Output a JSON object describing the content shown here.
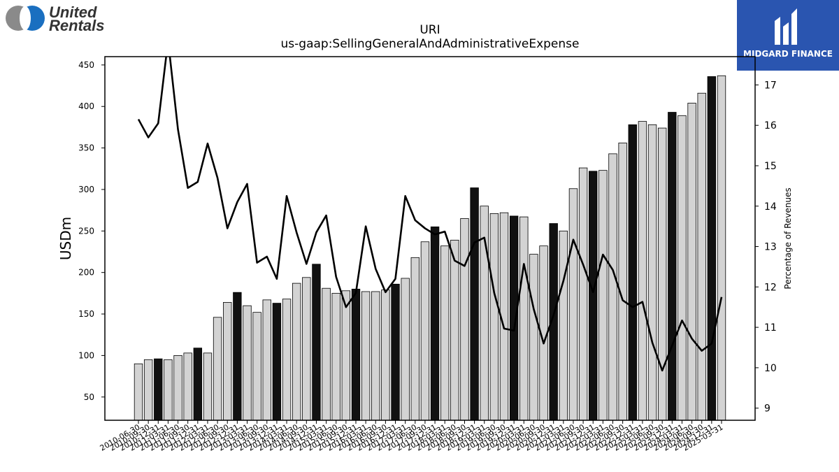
{
  "logo": {
    "line1": "United",
    "line2": "Rentals"
  },
  "badge": {
    "text": "MIDGARD FINANCE",
    "icon": "midgard-m-icon"
  },
  "colors": {
    "bar_default": "#d3d3d3",
    "bar_highlight": "#111111",
    "line": "#000000"
  },
  "chart_data": {
    "type": "bar",
    "title": "URI",
    "subtitle": "us-gaap:SellingGeneralAndAdministrativeExpense",
    "ylabel": "USDm",
    "y2label": "Percentage of Revenues",
    "ylim": [
      22,
      460
    ],
    "y2lim": [
      8.7,
      17.7
    ],
    "yticks": [
      50,
      100,
      150,
      200,
      250,
      300,
      350,
      400,
      450
    ],
    "y2ticks": [
      9,
      10,
      11,
      12,
      13,
      14,
      15,
      16,
      17
    ],
    "grid": false,
    "categories": [
      "2010-06-30",
      "2010-09-30",
      "2010-12-31",
      "2011-03-31",
      "2011-06-30",
      "2011-09-30",
      "2011-12-31",
      "2012-03-31",
      "2012-06-30",
      "2012-09-30",
      "2012-12-31",
      "2013-03-31",
      "2013-06-30",
      "2013-09-30",
      "2013-12-31",
      "2014-03-31",
      "2014-06-30",
      "2014-09-30",
      "2014-12-31",
      "2015-03-31",
      "2015-06-30",
      "2015-09-30",
      "2015-12-31",
      "2016-03-31",
      "2016-06-30",
      "2016-09-30",
      "2016-12-31",
      "2017-03-31",
      "2017-06-30",
      "2017-09-30",
      "2017-12-31",
      "2018-03-31",
      "2018-06-30",
      "2018-09-30",
      "2018-12-31",
      "2019-03-31",
      "2019-06-30",
      "2019-09-30",
      "2019-12-31",
      "2020-03-31",
      "2020-06-30",
      "2020-09-30",
      "2020-12-31",
      "2021-03-31",
      "2021-06-30",
      "2021-09-30",
      "2021-12-31",
      "2022-03-31",
      "2022-06-30",
      "2022-09-30",
      "2022-12-31",
      "2023-03-31",
      "2023-06-30",
      "2023-09-30",
      "2023-12-31",
      "2024-03-31",
      "2024-06-30",
      "2024-09-30",
      "2024-12-31",
      "2025-03-31"
    ],
    "series": [
      {
        "type": "bar",
        "axis": "left",
        "values": [
          90,
          95,
          96,
          95,
          100,
          103,
          109,
          103,
          146,
          164,
          176,
          160,
          152,
          167,
          163,
          168,
          187,
          194,
          210,
          181,
          175,
          178,
          180,
          177,
          177,
          179,
          186,
          193,
          218,
          237,
          255,
          232,
          239,
          265,
          302,
          280,
          271,
          272,
          268,
          267,
          222,
          232,
          259,
          250,
          301,
          326,
          322,
          323,
          343,
          356,
          378,
          382,
          378,
          374,
          393,
          389,
          404,
          416,
          436,
          437
        ],
        "highlight": [
          false,
          false,
          true,
          false,
          false,
          false,
          true,
          false,
          false,
          false,
          true,
          false,
          false,
          false,
          true,
          false,
          false,
          false,
          true,
          false,
          false,
          false,
          true,
          false,
          false,
          false,
          true,
          false,
          false,
          false,
          true,
          false,
          false,
          false,
          true,
          false,
          false,
          false,
          true,
          false,
          false,
          false,
          true,
          false,
          false,
          false,
          true,
          false,
          false,
          false,
          true,
          false,
          false,
          false,
          true,
          false,
          false,
          false,
          true,
          false
        ]
      },
      {
        "type": "line",
        "axis": "right",
        "values": [
          16.15,
          15.7,
          16.05,
          18.1,
          15.9,
          14.45,
          14.6,
          15.55,
          14.7,
          13.45,
          14.1,
          14.55,
          12.6,
          12.75,
          12.2,
          14.25,
          13.35,
          12.57,
          13.35,
          13.77,
          12.25,
          11.5,
          11.85,
          13.5,
          12.45,
          11.87,
          12.2,
          14.25,
          13.65,
          13.45,
          13.3,
          13.37,
          12.65,
          12.52,
          13.1,
          13.22,
          11.85,
          10.97,
          10.92,
          12.57,
          11.45,
          10.6,
          11.3,
          12.15,
          13.17,
          12.55,
          11.87,
          12.8,
          12.42,
          11.67,
          11.5,
          11.63,
          10.62,
          9.93,
          10.55,
          11.17,
          10.72,
          10.42,
          10.6,
          11.75
        ]
      }
    ]
  }
}
